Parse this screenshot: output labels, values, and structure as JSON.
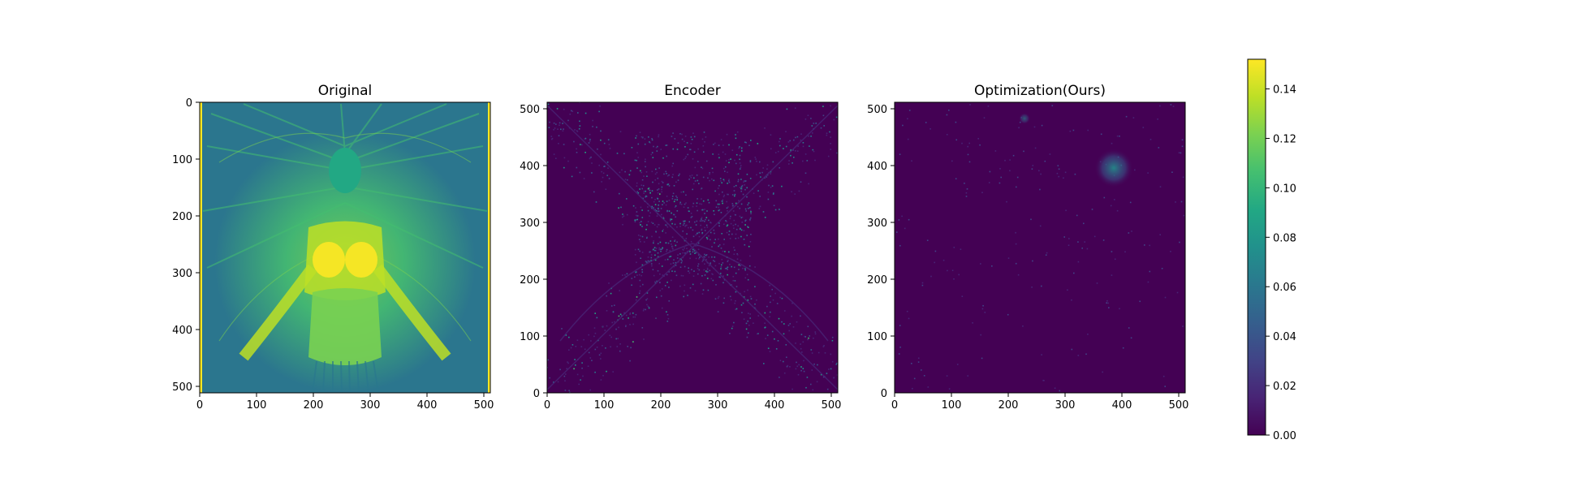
{
  "chart_data": [
    {
      "type": "heatmap",
      "title": "Original",
      "xlabel": "",
      "ylabel": "",
      "xlim": [
        0,
        511
      ],
      "ylim": [
        511,
        0
      ],
      "x_ticks": [
        "0",
        "100",
        "200",
        "300",
        "400",
        "500"
      ],
      "y_ticks": [
        "0",
        "100",
        "200",
        "300",
        "400",
        "500"
      ],
      "content": "grayscale portrait rendered in viridis colormap: figure with feathered headdress and outstretched arms; yellow edge lines on left and right borders"
    },
    {
      "type": "heatmap",
      "title": "Encoder",
      "xlabel": "",
      "ylabel": "",
      "xlim": [
        0,
        511
      ],
      "ylim": [
        0,
        511
      ],
      "x_ticks": [
        "0",
        "100",
        "200",
        "300",
        "400",
        "500"
      ],
      "y_ticks": [
        "500",
        "400",
        "300",
        "200",
        "100",
        "0"
      ],
      "content": "error map, mostly dark purple with scattered bright speckles concentrated around the figure's outline (diagonal X-shaped pattern)"
    },
    {
      "type": "heatmap",
      "title": "Optimization(Ours)",
      "xlabel": "",
      "ylabel": "",
      "xlim": [
        0,
        511
      ],
      "ylim": [
        0,
        511
      ],
      "x_ticks": [
        "0",
        "100",
        "200",
        "300",
        "400",
        "500"
      ],
      "y_ticks": [
        "500",
        "400",
        "300",
        "200",
        "100",
        "0"
      ],
      "content": "error map, almost uniformly dark purple with a small bright cluster near x≈390, y≈400"
    }
  ],
  "colorbar": {
    "colormap": "viridis",
    "min": 0.0,
    "max": 0.152,
    "ticks": [
      "0.00",
      "0.02",
      "0.04",
      "0.06",
      "0.08",
      "0.10",
      "0.12",
      "0.14"
    ],
    "tick_values": [
      0.0,
      0.02,
      0.04,
      0.06,
      0.08,
      0.1,
      0.12,
      0.14
    ]
  },
  "colors": {
    "viridis": [
      "#440154",
      "#482475",
      "#414487",
      "#355f8d",
      "#2a788e",
      "#21918c",
      "#22a884",
      "#44bf70",
      "#7ad151",
      "#bddf26",
      "#fde725"
    ],
    "dark_background": "#440154"
  }
}
